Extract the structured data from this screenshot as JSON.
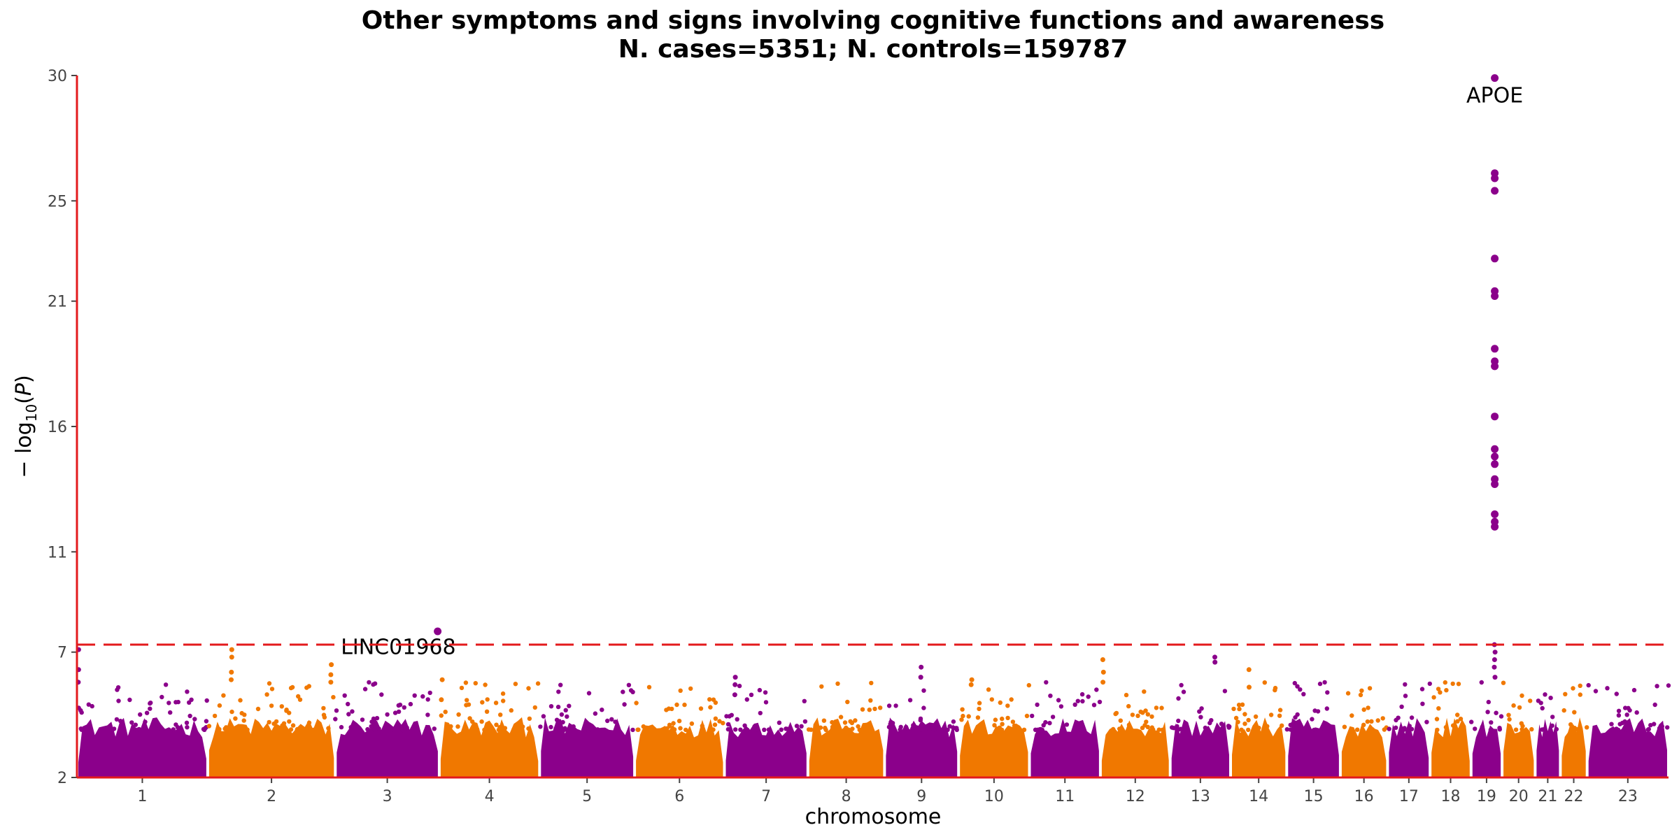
{
  "chart_data": {
    "type": "scatter",
    "subtype": "manhattan",
    "title": "Other symptoms and signs involving cognitive functions and awareness",
    "subtitle": "N. cases=5351; N. controls=159787",
    "xlabel": "chromosome",
    "ylabel": "−log10(P)",
    "ylim": [
      2,
      30
    ],
    "yticks": [
      2,
      7,
      11,
      16,
      21,
      25,
      30
    ],
    "significance_threshold": 7.3,
    "colors": {
      "odd": "#8b008b",
      "even": "#f07800",
      "axis": "#e31a1c",
      "threshold": "#e31a1c"
    },
    "chromosomes": [
      {
        "label": "1",
        "length": 249
      },
      {
        "label": "2",
        "length": 243
      },
      {
        "label": "3",
        "length": 198
      },
      {
        "label": "4",
        "length": 191
      },
      {
        "label": "5",
        "length": 181
      },
      {
        "label": "6",
        "length": 171
      },
      {
        "label": "7",
        "length": 159
      },
      {
        "label": "8",
        "length": 146
      },
      {
        "label": "9",
        "length": 141
      },
      {
        "label": "10",
        "length": 135
      },
      {
        "label": "11",
        "length": 135
      },
      {
        "label": "12",
        "length": 133
      },
      {
        "label": "13",
        "length": 115
      },
      {
        "label": "14",
        "length": 107
      },
      {
        "label": "15",
        "length": 102
      },
      {
        "label": "16",
        "length": 90
      },
      {
        "label": "17",
        "length": 81
      },
      {
        "label": "18",
        "length": 78
      },
      {
        "label": "19",
        "length": 59
      },
      {
        "label": "20",
        "length": 63
      },
      {
        "label": "21",
        "length": 48
      },
      {
        "label": "22",
        "length": 51
      },
      {
        "label": "23",
        "length": 155
      }
    ],
    "peaks": [
      {
        "chromosome": "1",
        "position": 3,
        "values": [
          7.1,
          6.3,
          5.8
        ]
      },
      {
        "chromosome": "2",
        "position": 45,
        "values": [
          7.1,
          6.8,
          6.2,
          5.9
        ]
      },
      {
        "chromosome": "2",
        "position": 235,
        "values": [
          6.5,
          6.1,
          5.8
        ]
      },
      {
        "chromosome": "4",
        "position": 5,
        "values": [
          5.9,
          5.1
        ]
      },
      {
        "chromosome": "7",
        "position": 20,
        "values": [
          6.0,
          5.7,
          5.3
        ]
      },
      {
        "chromosome": "9",
        "position": 70,
        "values": [
          6.4,
          6.0
        ]
      },
      {
        "chromosome": "10",
        "position": 25,
        "values": [
          5.9,
          5.7
        ]
      },
      {
        "chromosome": "12",
        "position": 5,
        "values": [
          6.7,
          6.2,
          5.8
        ]
      },
      {
        "chromosome": "13",
        "position": 85,
        "values": [
          6.8,
          6.6
        ]
      },
      {
        "chromosome": "14",
        "position": 35,
        "values": [
          6.3,
          5.6
        ]
      },
      {
        "chromosome": "19",
        "position": 45,
        "values": [
          7.3,
          7.0,
          6.7,
          6.4,
          6.0
        ]
      }
    ],
    "highlighted_points": [
      {
        "chromosome": "3",
        "position": 195,
        "value": 7.83
      },
      {
        "chromosome": "19",
        "position": 45,
        "value": 29.9
      },
      {
        "chromosome": "19",
        "position": 45,
        "value": 26.1
      },
      {
        "chromosome": "19",
        "position": 45,
        "value": 25.9
      },
      {
        "chromosome": "19",
        "position": 45,
        "value": 25.4
      },
      {
        "chromosome": "19",
        "position": 45,
        "value": 22.7
      },
      {
        "chromosome": "19",
        "position": 45,
        "value": 21.4
      },
      {
        "chromosome": "19",
        "position": 45,
        "value": 21.2
      },
      {
        "chromosome": "19",
        "position": 45,
        "value": 19.1
      },
      {
        "chromosome": "19",
        "position": 45,
        "value": 18.6
      },
      {
        "chromosome": "19",
        "position": 45,
        "value": 18.4
      },
      {
        "chromosome": "19",
        "position": 45,
        "value": 16.4
      },
      {
        "chromosome": "19",
        "position": 45,
        "value": 15.1
      },
      {
        "chromosome": "19",
        "position": 45,
        "value": 14.8
      },
      {
        "chromosome": "19",
        "position": 45,
        "value": 14.5
      },
      {
        "chromosome": "19",
        "position": 45,
        "value": 13.9
      },
      {
        "chromosome": "19",
        "position": 45,
        "value": 13.7
      },
      {
        "chromosome": "19",
        "position": 45,
        "value": 12.5
      },
      {
        "chromosome": "19",
        "position": 45,
        "value": 12.2
      },
      {
        "chromosome": "19",
        "position": 45,
        "value": 12.0
      }
    ],
    "annotations": [
      {
        "label": "APOE",
        "chromosome": "19",
        "position": 45,
        "value": 29.2
      },
      {
        "label": "LINC01968",
        "chromosome": "3",
        "position": 120,
        "value": 7.2
      }
    ]
  }
}
